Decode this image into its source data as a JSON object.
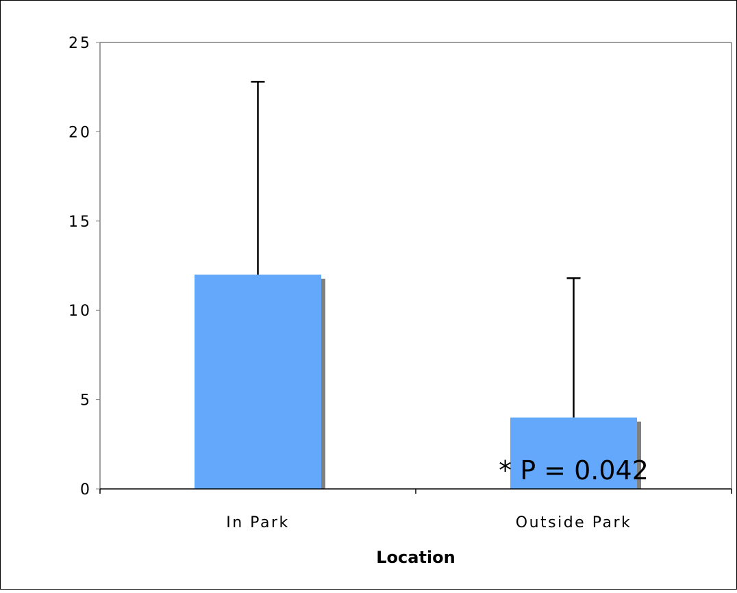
{
  "chart_data": {
    "type": "bar",
    "categories": [
      "In Park",
      "Outside Park"
    ],
    "values": [
      12,
      4
    ],
    "error_upper": [
      22.8,
      11.8
    ],
    "xlabel": "Location",
    "ylabel": "",
    "ylim": [
      0,
      25
    ],
    "yticks": [
      "0",
      "5",
      "10",
      "15",
      "20",
      "25"
    ],
    "annotation": "* P = 0.042",
    "grid": false,
    "legend": "none",
    "colors": {
      "bar": "#63a8fb",
      "bar_shadow": "#808080",
      "axis": "#808080",
      "error_bar": "#000000",
      "frame": "#000000"
    }
  }
}
